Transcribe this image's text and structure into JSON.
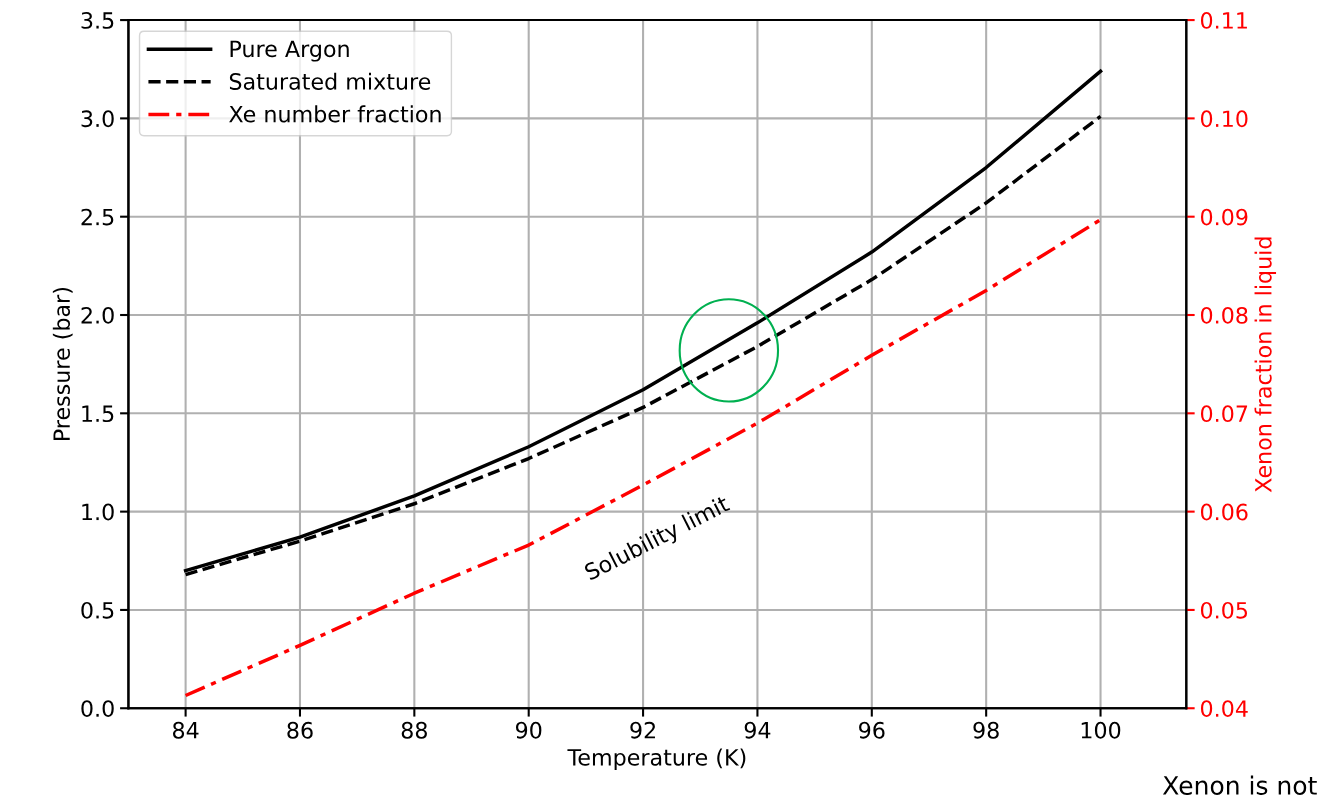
{
  "chart_data": {
    "type": "line",
    "xlabel": "Temperature (K)",
    "ylabel": "Pressure (bar)",
    "y2label": "Xenon fraction in liquid",
    "x": [
      84,
      86,
      88,
      90,
      92,
      94,
      96,
      98,
      100
    ],
    "series": [
      {
        "name": "Pure Argon",
        "color": "#000000",
        "line_style": "solid",
        "values": [
          0.7,
          0.87,
          1.08,
          1.33,
          1.62,
          1.96,
          2.32,
          2.75,
          3.24
        ]
      },
      {
        "name": "Saturated mixture",
        "color": "#000000",
        "line_style": "dashed",
        "values": [
          0.68,
          0.85,
          1.04,
          1.27,
          1.53,
          1.84,
          2.18,
          2.57,
          3.01
        ]
      },
      {
        "name": "Xe number fraction",
        "color": "#ff0000",
        "line_style": "dashdot",
        "axis": "y2",
        "values": [
          0.0413,
          0.0464,
          0.0517,
          0.0566,
          0.0627,
          0.069,
          0.0759,
          0.0825,
          0.0897
        ]
      }
    ],
    "xlim": [
      83.0,
      101.5
    ],
    "xticks": [
      84,
      86,
      88,
      90,
      92,
      94,
      96,
      98,
      100
    ],
    "ylim": [
      0,
      3.5
    ],
    "yticks": [
      {
        "value": 0,
        "label": "0.0"
      },
      0.5,
      {
        "value": 1,
        "label": "1.0"
      },
      1.5,
      {
        "value": 2,
        "label": "2.0"
      },
      2.5,
      {
        "value": 3,
        "label": "3.0"
      },
      3.5
    ],
    "y2lim": [
      0.04,
      0.11
    ],
    "y2ticks": [
      0.04,
      0.05,
      0.06,
      0.07,
      0.08,
      0.09,
      {
        "value": 0.1,
        "label": "0.10"
      },
      0.11
    ],
    "grid": true,
    "legend": "top left",
    "marker": "none",
    "annotations": [
      "Solubility limit",
      "Xenon is not"
    ]
  }
}
